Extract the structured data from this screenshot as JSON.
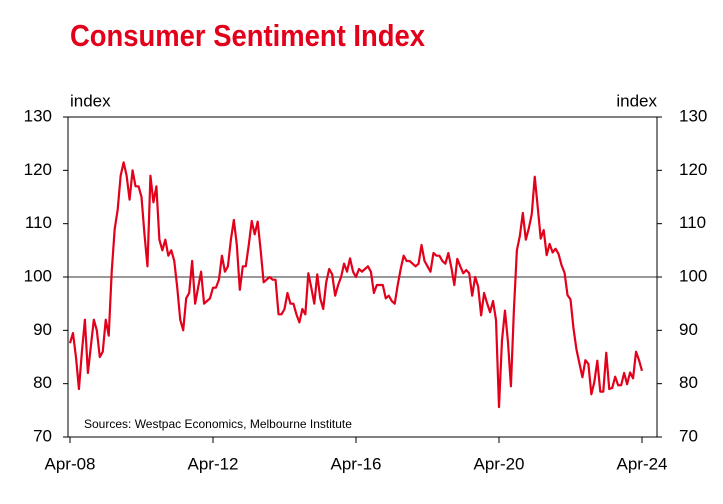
{
  "chart_data": {
    "type": "line",
    "title": "Consumer Sentiment Index",
    "y_label": "index",
    "y2_label": "index",
    "annotation": "Sources: Westpac Economics, Melbourne Institute",
    "categories": [
      "Apr-08",
      null,
      null,
      null,
      null,
      null,
      null,
      null,
      null,
      null,
      null,
      null,
      null,
      null,
      null,
      null,
      null,
      null,
      null,
      null,
      null,
      null,
      null,
      null,
      null,
      null,
      null,
      null,
      null,
      null,
      null,
      null,
      null,
      null,
      null,
      null,
      null,
      null,
      null,
      null,
      null,
      null,
      null,
      null,
      null,
      null,
      null,
      null,
      "Apr-12",
      null,
      null,
      null,
      null,
      null,
      null,
      null,
      null,
      null,
      null,
      null,
      null,
      null,
      null,
      null,
      null,
      null,
      null,
      null,
      null,
      null,
      null,
      null,
      null,
      null,
      null,
      null,
      null,
      null,
      null,
      null,
      null,
      null,
      null,
      null,
      null,
      null,
      null,
      null,
      null,
      null,
      null,
      null,
      null,
      null,
      null,
      null,
      "Apr-16",
      null,
      null,
      null,
      null,
      null,
      null,
      null,
      null,
      null,
      null,
      null,
      null,
      null,
      null,
      null,
      null,
      null,
      null,
      null,
      null,
      null,
      null,
      null,
      null,
      null,
      null,
      null,
      null,
      null,
      null,
      null,
      null,
      null,
      null,
      null,
      null,
      null,
      null,
      null,
      null,
      null,
      null,
      null,
      null,
      null,
      null,
      null,
      "Apr-20",
      null,
      null,
      null,
      null,
      null,
      null,
      null,
      null,
      null,
      null,
      null,
      null,
      null,
      null,
      null,
      null,
      null,
      null,
      null,
      null,
      null,
      null,
      null,
      null,
      null,
      null,
      null,
      null,
      null,
      null,
      null,
      null,
      null,
      null,
      null,
      null,
      null,
      null,
      null,
      null,
      null,
      null,
      null,
      null,
      null,
      null,
      null,
      "Apr-24"
    ],
    "series": [
      {
        "name": "Consumer Sentiment Index",
        "color": "#e3001b",
        "values": [
          87.6,
          89.5,
          85,
          79,
          86,
          92,
          82,
          87,
          92,
          90,
          85,
          86,
          92,
          89,
          101,
          109,
          112.6,
          119,
          121.5,
          119,
          114.5,
          120,
          117,
          117,
          115,
          108,
          102,
          119,
          114,
          117,
          107,
          105,
          107,
          104,
          105,
          103,
          98,
          92,
          90,
          96,
          97,
          103,
          95,
          98,
          101,
          95,
          95.5,
          96,
          98,
          98,
          99.5,
          104,
          101,
          102,
          107,
          110.7,
          106,
          97.6,
          102,
          102,
          106,
          110.5,
          108,
          110.4,
          105,
          99,
          99.5,
          100,
          99.5,
          99.5,
          93,
          93,
          94,
          97,
          95,
          95,
          93,
          91.5,
          94,
          93,
          100.7,
          98,
          95,
          100.5,
          96,
          94,
          99,
          101.5,
          100.5,
          96.5,
          98.5,
          100,
          102.5,
          101,
          103.5,
          101,
          100,
          101.5,
          101,
          101.5,
          102,
          101,
          97,
          98.5,
          98.5,
          98.5,
          96,
          96.5,
          95.5,
          95,
          98.5,
          101.5,
          104,
          103,
          103,
          102.5,
          102,
          102.5,
          106,
          103,
          102,
          101,
          104.5,
          104,
          104,
          103,
          102.5,
          104.5,
          101.8,
          98.5,
          103.4,
          102,
          100.7,
          101.3,
          100.7,
          96.5,
          100,
          98.2,
          92.8,
          97,
          95.1,
          93.4,
          95.5,
          91.9,
          75.6,
          88.1,
          93.7,
          87.9,
          79.5,
          93.8,
          105,
          107.7,
          112,
          107,
          109.1,
          111.8,
          118.8,
          113.1,
          107.2,
          108.8,
          104.1,
          106.2,
          104.6,
          105.3,
          104.3,
          102.2,
          100.8,
          96.6,
          95.8,
          90.4,
          86.4,
          83.8,
          81.2,
          84.4,
          83.7,
          78,
          80.3,
          84.3,
          78.5,
          78.5,
          85.8,
          79,
          79.2,
          81.3,
          79.7,
          79.7,
          82,
          79.9,
          82.1,
          81,
          86,
          84.4,
          82.4
        ]
      }
    ],
    "ylim": [
      70,
      130
    ],
    "yticks": [
      70,
      80,
      90,
      100,
      110,
      120,
      130
    ],
    "y2lim": [
      70,
      130
    ],
    "y2ticks": [
      70,
      80,
      90,
      100,
      110,
      120,
      130
    ],
    "reference_line": 100,
    "grid": false
  }
}
